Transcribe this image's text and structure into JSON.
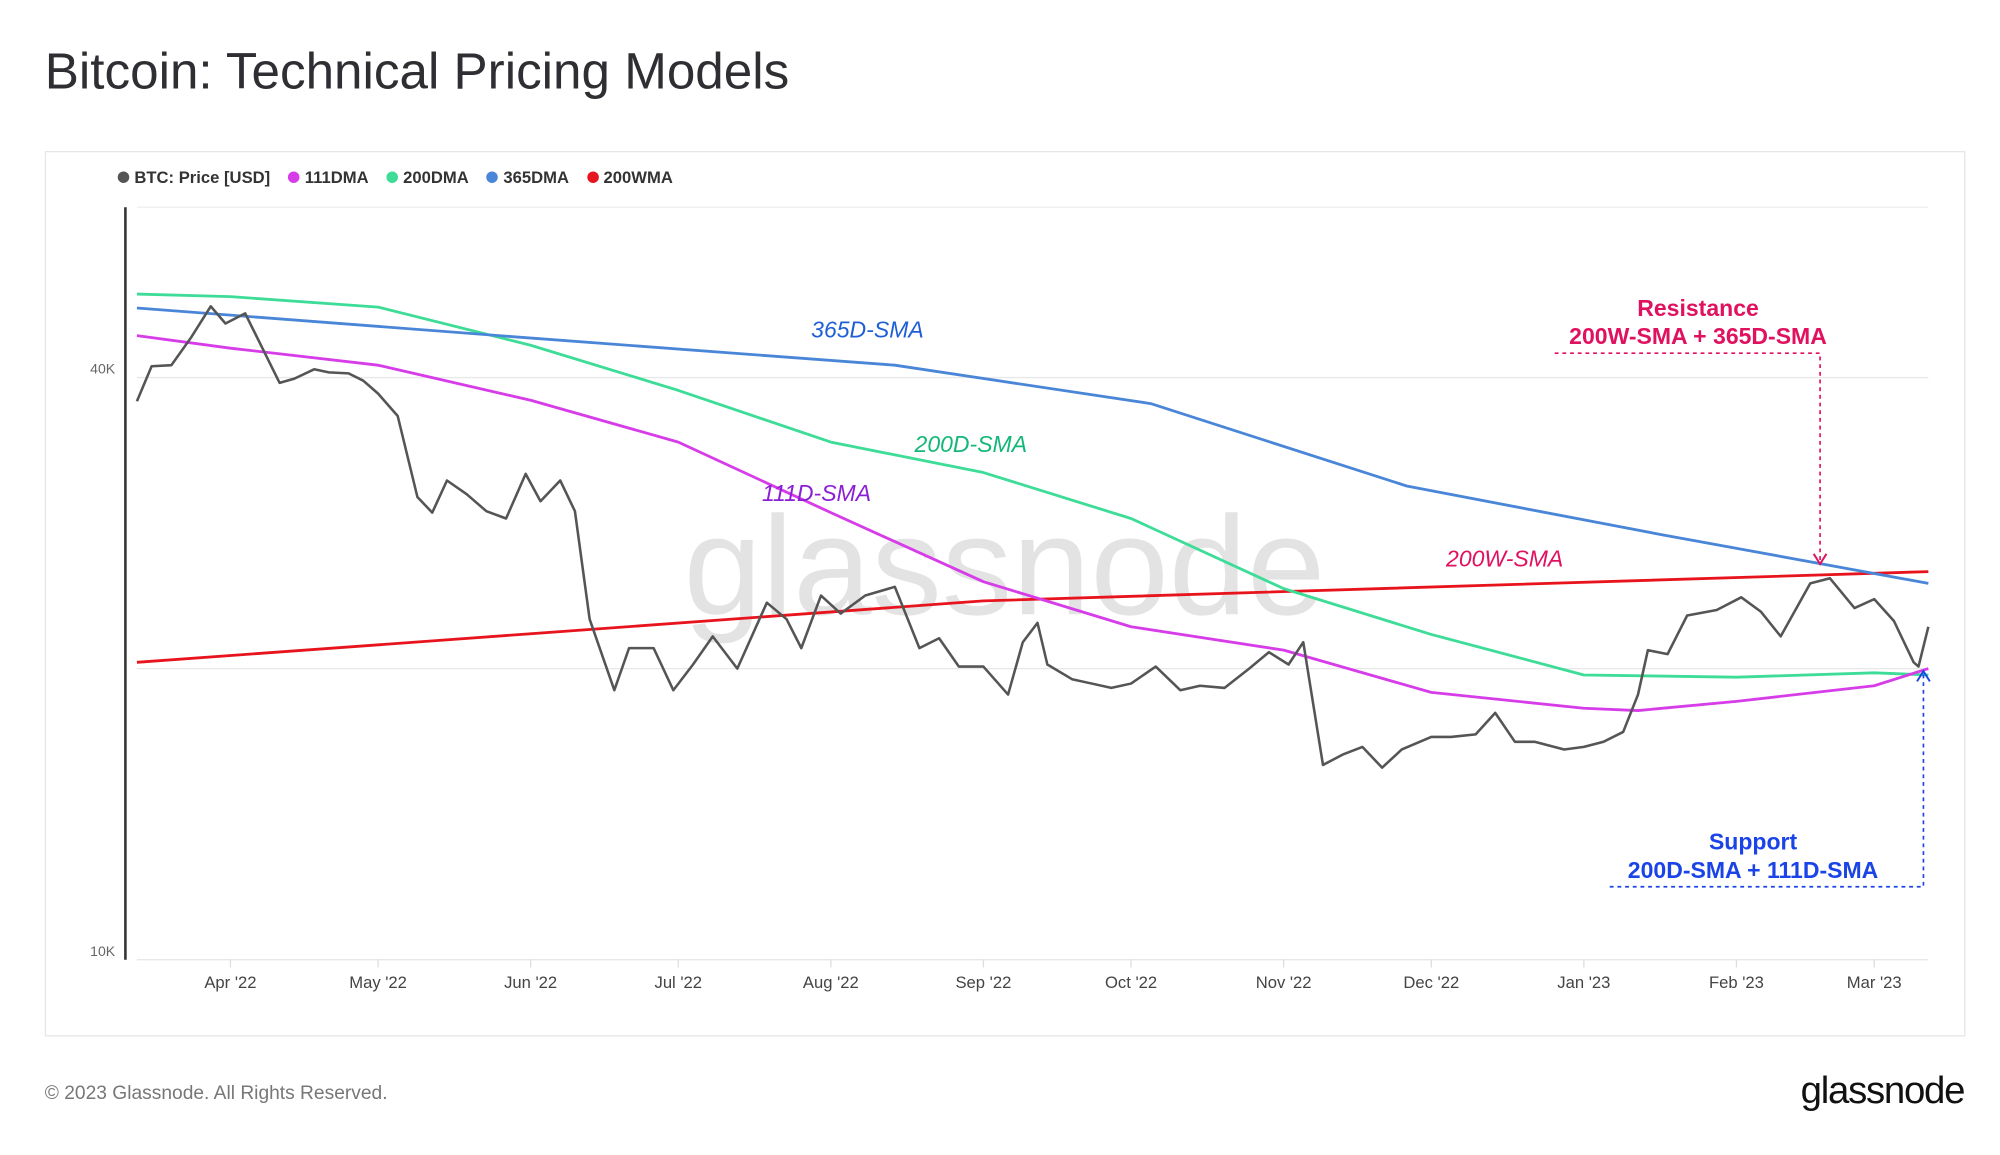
{
  "title": "Bitcoin: Technical Pricing Models",
  "footer": {
    "copyright": "© 2023 Glassnode. All Rights Reserved.",
    "logo": "glassnode",
    "watermark": "glassnode"
  },
  "chart_data": {
    "type": "line",
    "title": "Bitcoin: Technical Pricing Models",
    "y_scale": "log",
    "ylim": [
      10000,
      60000
    ],
    "xlim": [
      "2022-03-13",
      "2023-03-12"
    ],
    "y_ticks": [
      {
        "value": 10000,
        "label": "10K"
      },
      {
        "value": 40000,
        "label": "40K"
      }
    ],
    "x_ticks": [
      {
        "date": "2022-04-01",
        "label": "Apr '22"
      },
      {
        "date": "2022-05-01",
        "label": "May '22"
      },
      {
        "date": "2022-06-01",
        "label": "Jun '22"
      },
      {
        "date": "2022-07-01",
        "label": "Jul '22"
      },
      {
        "date": "2022-08-01",
        "label": "Aug '22"
      },
      {
        "date": "2022-09-01",
        "label": "Sep '22"
      },
      {
        "date": "2022-10-01",
        "label": "Oct '22"
      },
      {
        "date": "2022-11-01",
        "label": "Nov '22"
      },
      {
        "date": "2022-12-01",
        "label": "Dec '22"
      },
      {
        "date": "2023-01-01",
        "label": "Jan '23"
      },
      {
        "date": "2023-02-01",
        "label": "Feb '23"
      },
      {
        "date": "2023-03-01",
        "label": "Mar '23"
      }
    ],
    "grid": true,
    "legend_position": "top-left",
    "series": [
      {
        "name": "BTC: Price [USD]",
        "color": "#555555",
        "points": [
          [
            "2022-03-13",
            37800
          ],
          [
            "2022-03-16",
            41100
          ],
          [
            "2022-03-20",
            41200
          ],
          [
            "2022-03-24",
            44000
          ],
          [
            "2022-03-28",
            47400
          ],
          [
            "2022-03-31",
            45500
          ],
          [
            "2022-04-04",
            46600
          ],
          [
            "2022-04-07",
            43400
          ],
          [
            "2022-04-11",
            39500
          ],
          [
            "2022-04-14",
            39900
          ],
          [
            "2022-04-18",
            40800
          ],
          [
            "2022-04-21",
            40500
          ],
          [
            "2022-04-25",
            40400
          ],
          [
            "2022-04-28",
            39700
          ],
          [
            "2022-05-01",
            38500
          ],
          [
            "2022-05-05",
            36500
          ],
          [
            "2022-05-09",
            30100
          ],
          [
            "2022-05-12",
            29000
          ],
          [
            "2022-05-15",
            31300
          ],
          [
            "2022-05-19",
            30300
          ],
          [
            "2022-05-23",
            29100
          ],
          [
            "2022-05-27",
            28600
          ],
          [
            "2022-05-31",
            31800
          ],
          [
            "2022-06-03",
            29800
          ],
          [
            "2022-06-07",
            31300
          ],
          [
            "2022-06-10",
            29100
          ],
          [
            "2022-06-13",
            22500
          ],
          [
            "2022-06-18",
            19000
          ],
          [
            "2022-06-21",
            21000
          ],
          [
            "2022-06-26",
            21000
          ],
          [
            "2022-06-30",
            19000
          ],
          [
            "2022-07-04",
            20200
          ],
          [
            "2022-07-08",
            21600
          ],
          [
            "2022-07-13",
            20000
          ],
          [
            "2022-07-19",
            23400
          ],
          [
            "2022-07-23",
            22500
          ],
          [
            "2022-07-26",
            21000
          ],
          [
            "2022-07-30",
            23800
          ],
          [
            "2022-08-03",
            22800
          ],
          [
            "2022-08-08",
            23800
          ],
          [
            "2022-08-14",
            24300
          ],
          [
            "2022-08-19",
            21000
          ],
          [
            "2022-08-23",
            21500
          ],
          [
            "2022-08-27",
            20100
          ],
          [
            "2022-09-01",
            20100
          ],
          [
            "2022-09-06",
            18800
          ],
          [
            "2022-09-09",
            21300
          ],
          [
            "2022-09-12",
            22300
          ],
          [
            "2022-09-14",
            20200
          ],
          [
            "2022-09-19",
            19500
          ],
          [
            "2022-09-23",
            19300
          ],
          [
            "2022-09-27",
            19100
          ],
          [
            "2022-10-01",
            19300
          ],
          [
            "2022-10-06",
            20100
          ],
          [
            "2022-10-11",
            19000
          ],
          [
            "2022-10-15",
            19200
          ],
          [
            "2022-10-20",
            19100
          ],
          [
            "2022-10-25",
            20000
          ],
          [
            "2022-10-29",
            20800
          ],
          [
            "2022-11-02",
            20200
          ],
          [
            "2022-11-05",
            21300
          ],
          [
            "2022-11-09",
            15900
          ],
          [
            "2022-11-13",
            16300
          ],
          [
            "2022-11-17",
            16600
          ],
          [
            "2022-11-21",
            15800
          ],
          [
            "2022-11-25",
            16500
          ],
          [
            "2022-12-01",
            17000
          ],
          [
            "2022-12-05",
            17000
          ],
          [
            "2022-12-10",
            17100
          ],
          [
            "2022-12-14",
            18000
          ],
          [
            "2022-12-18",
            16800
          ],
          [
            "2022-12-22",
            16800
          ],
          [
            "2022-12-28",
            16500
          ],
          [
            "2023-01-01",
            16600
          ],
          [
            "2023-01-05",
            16800
          ],
          [
            "2023-01-09",
            17200
          ],
          [
            "2023-01-12",
            18800
          ],
          [
            "2023-01-14",
            20900
          ],
          [
            "2023-01-18",
            20700
          ],
          [
            "2023-01-22",
            22700
          ],
          [
            "2023-01-28",
            23000
          ],
          [
            "2023-02-02",
            23700
          ],
          [
            "2023-02-06",
            22900
          ],
          [
            "2023-02-10",
            21600
          ],
          [
            "2023-02-16",
            24500
          ],
          [
            "2023-02-20",
            24800
          ],
          [
            "2023-02-25",
            23100
          ],
          [
            "2023-03-01",
            23600
          ],
          [
            "2023-03-05",
            22400
          ],
          [
            "2023-03-09",
            20300
          ],
          [
            "2023-03-10",
            20100
          ],
          [
            "2023-03-12",
            22100
          ]
        ]
      },
      {
        "name": "111DMA",
        "color": "#d63de8",
        "points": [
          [
            "2022-03-13",
            44200
          ],
          [
            "2022-04-01",
            42900
          ],
          [
            "2022-05-01",
            41200
          ],
          [
            "2022-06-01",
            37900
          ],
          [
            "2022-07-01",
            34300
          ],
          [
            "2022-08-01",
            29000
          ],
          [
            "2022-09-01",
            24600
          ],
          [
            "2022-10-01",
            22100
          ],
          [
            "2022-11-01",
            20900
          ],
          [
            "2022-12-01",
            18900
          ],
          [
            "2023-01-01",
            18200
          ],
          [
            "2023-01-12",
            18100
          ],
          [
            "2023-02-01",
            18500
          ],
          [
            "2023-03-01",
            19200
          ],
          [
            "2023-03-12",
            20000
          ]
        ]
      },
      {
        "name": "200DMA",
        "color": "#3ddc97",
        "points": [
          [
            "2022-03-13",
            48800
          ],
          [
            "2022-04-01",
            48500
          ],
          [
            "2022-05-01",
            47300
          ],
          [
            "2022-06-01",
            43200
          ],
          [
            "2022-07-01",
            38800
          ],
          [
            "2022-08-01",
            34300
          ],
          [
            "2022-09-01",
            31900
          ],
          [
            "2022-10-01",
            28600
          ],
          [
            "2022-11-01",
            24200
          ],
          [
            "2022-12-01",
            21700
          ],
          [
            "2023-01-01",
            19700
          ],
          [
            "2023-02-01",
            19600
          ],
          [
            "2023-03-01",
            19800
          ],
          [
            "2023-03-12",
            19700
          ]
        ]
      },
      {
        "name": "365DMA",
        "color": "#4a86d8",
        "points": [
          [
            "2022-03-13",
            47200
          ],
          [
            "2022-05-28",
            44100
          ],
          [
            "2022-08-14",
            41200
          ],
          [
            "2022-10-05",
            37600
          ],
          [
            "2022-11-26",
            30900
          ],
          [
            "2023-01-17",
            27500
          ],
          [
            "2023-03-12",
            24500
          ]
        ]
      },
      {
        "name": "200WMA",
        "color": "#e8141d",
        "points": [
          [
            "2022-03-13",
            20300
          ],
          [
            "2022-09-01",
            23500
          ],
          [
            "2023-03-12",
            25200
          ]
        ]
      }
    ],
    "annotations": [
      {
        "text": "365D-SMA",
        "color": "#1f5fd6",
        "date": "2022-07-28",
        "value": 44000
      },
      {
        "text": "200D-SMA",
        "color": "#14b77a",
        "date": "2022-08-18",
        "value": 33500
      },
      {
        "text": "111D-SMA",
        "color": "#8b1fd6",
        "date": "2022-07-18",
        "value": 29800
      },
      {
        "text": "200W-SMA",
        "color": "#e0115f",
        "date": "2022-12-04",
        "value": 25500
      }
    ],
    "callouts": [
      {
        "id": "resistance",
        "lines": [
          "Resistance",
          "200W-SMA + 365D-SMA"
        ],
        "color": "#e0115f",
        "target_date": "2023-02-18",
        "target_value": 25500
      },
      {
        "id": "support",
        "lines": [
          "Support",
          "200D-SMA + 111D-SMA"
        ],
        "color": "#1a44e8",
        "target_date": "2023-03-11",
        "target_value": 20000
      }
    ]
  }
}
